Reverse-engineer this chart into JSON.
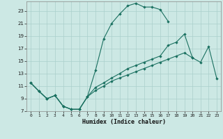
{
  "xlabel": "Humidex (Indice chaleur)",
  "bg_color": "#cce8e4",
  "grid_color": "#aacfcb",
  "line_color": "#1a7060",
  "xlim": [
    -0.5,
    23.5
  ],
  "ylim": [
    7,
    24.5
  ],
  "yticks": [
    7,
    9,
    11,
    13,
    15,
    17,
    19,
    21,
    23
  ],
  "xticks": [
    0,
    1,
    2,
    3,
    4,
    5,
    6,
    7,
    8,
    9,
    10,
    11,
    12,
    13,
    14,
    15,
    16,
    17,
    18,
    19,
    20,
    21,
    22,
    23
  ],
  "line1_x": [
    0,
    1,
    2,
    3,
    4,
    5,
    6,
    7,
    8,
    9,
    10,
    11,
    12,
    13,
    14,
    15,
    16,
    17
  ],
  "line1_y": [
    11.5,
    10.2,
    9.0,
    9.5,
    7.8,
    7.3,
    7.3,
    9.3,
    13.5,
    18.5,
    21.0,
    22.5,
    23.8,
    24.2,
    23.6,
    23.6,
    23.2,
    21.3
  ],
  "line2_x": [
    0,
    1,
    2,
    3,
    4,
    5,
    6,
    7,
    8,
    9,
    10,
    11,
    12,
    13,
    14,
    15,
    16,
    17,
    18,
    19,
    20
  ],
  "line2_y": [
    11.5,
    10.2,
    9.0,
    9.5,
    7.8,
    7.3,
    7.3,
    9.3,
    10.3,
    11.0,
    11.8,
    12.3,
    12.8,
    13.3,
    13.8,
    14.3,
    14.8,
    15.3,
    15.8,
    16.3,
    15.5
  ],
  "line3_x": [
    0,
    1,
    2,
    3,
    4,
    5,
    6,
    7,
    8,
    9,
    10,
    11,
    12,
    13,
    14,
    15,
    16,
    17,
    18,
    19,
    20,
    21,
    22,
    23
  ],
  "line3_y": [
    11.5,
    10.2,
    9.0,
    9.5,
    7.8,
    7.3,
    7.3,
    9.3,
    10.8,
    11.5,
    12.3,
    13.0,
    13.8,
    14.3,
    14.8,
    15.3,
    15.8,
    17.5,
    18.0,
    19.3,
    15.5,
    14.8,
    17.3,
    12.2
  ]
}
